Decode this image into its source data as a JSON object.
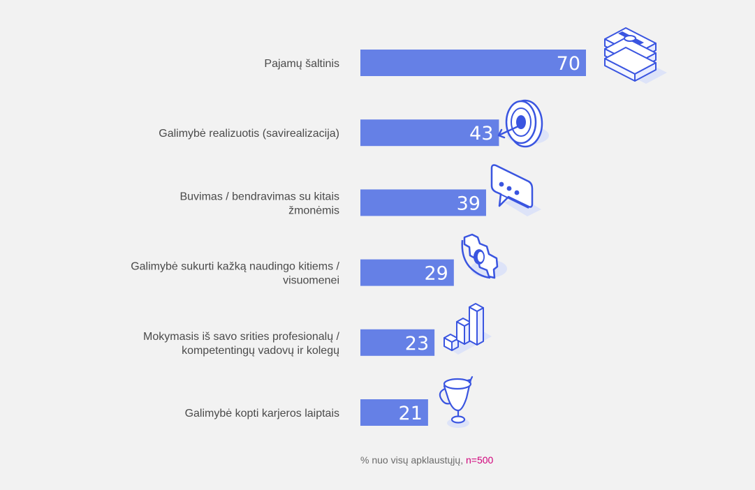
{
  "chart_data": {
    "type": "bar",
    "orientation": "horizontal",
    "categories": [
      [
        "Pajamų šaltinis"
      ],
      [
        "Galimybė realizuotis (savirealizacija)"
      ],
      [
        "Buvimas / bendravimas su kitais",
        "žmonėmis"
      ],
      [
        "Galimybė sukurti kažką naudingo kitiems /",
        "visuomenei"
      ],
      [
        "Mokymasis iš savo srities profesionalų /",
        "kompetentingų vadovų ir kolegų"
      ],
      [
        "Galimybė kopti karjeros laiptais"
      ]
    ],
    "values": [
      70,
      43,
      39,
      29,
      23,
      21
    ],
    "value_labels": [
      "70",
      "43",
      "39",
      "29",
      "23",
      "21"
    ],
    "icons": [
      "money-stack-icon",
      "target-icon",
      "speech-bubble-icon",
      "gear-icon",
      "bar-chart-icon",
      "trophy-icon"
    ],
    "bar_color": "#6580e6",
    "icon_color": "#3a55e0",
    "icon_shadow_color": "#dde3f8",
    "xlim": [
      0,
      70
    ],
    "grid": false,
    "legend": "none"
  },
  "footnote": {
    "text": "% nuo visų apklaustųjų, ",
    "n": "n=500",
    "n_color": "#d0007a"
  }
}
